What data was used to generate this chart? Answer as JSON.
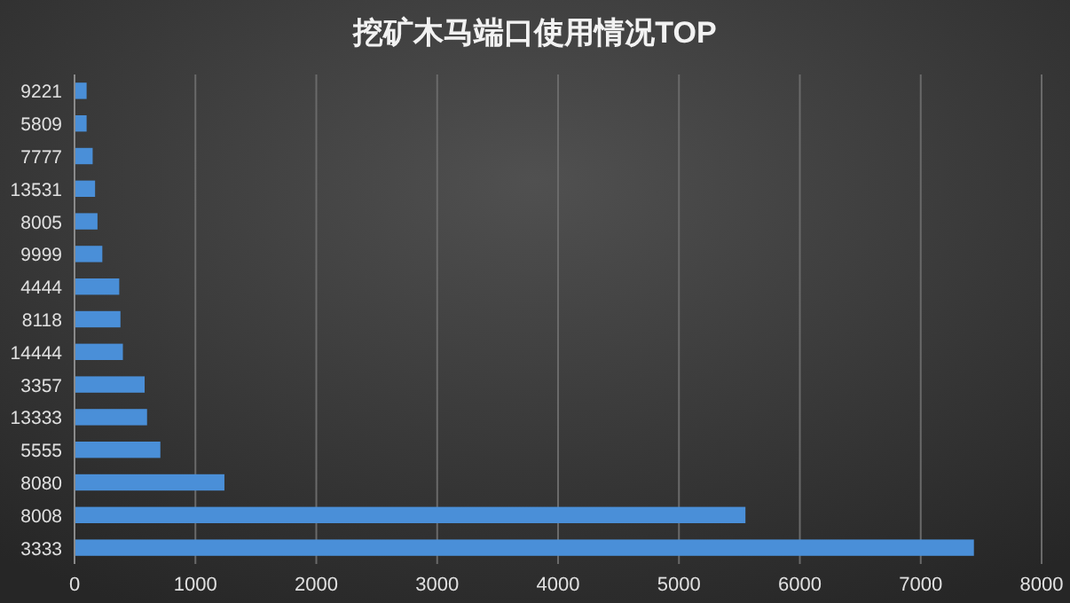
{
  "chart_data": {
    "type": "bar",
    "orientation": "horizontal",
    "title": "挖矿木马端口使用情况TOP",
    "categories": [
      "9221",
      "5809",
      "7777",
      "13531",
      "8005",
      "9999",
      "4444",
      "8118",
      "14444",
      "3357",
      "13333",
      "5555",
      "8080",
      "8008",
      "3333"
    ],
    "values": [
      100,
      100,
      150,
      170,
      190,
      230,
      370,
      380,
      400,
      580,
      600,
      710,
      1240,
      5550,
      7440
    ],
    "color": "#4a8fd8",
    "xlim": [
      0,
      8000
    ],
    "xticks": [
      0,
      1000,
      2000,
      3000,
      4000,
      5000,
      6000,
      7000,
      8000
    ],
    "grid": "x"
  }
}
